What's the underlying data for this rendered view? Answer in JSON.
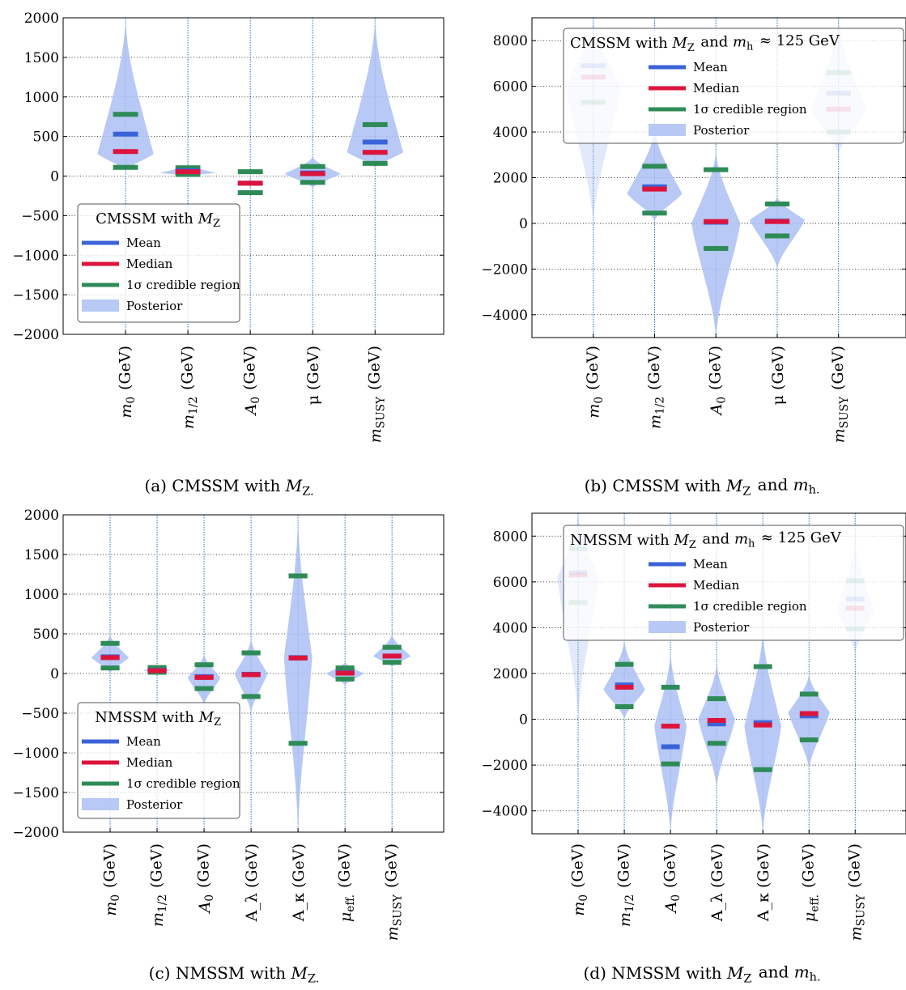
{
  "colors": {
    "mean": "#3b63d8",
    "median": "#dc143c",
    "ci": "#2e8b57",
    "posterior": "#aabff2",
    "guide": "#1f6fd1"
  },
  "chart_data": [
    {
      "type": "violin",
      "panel": "a",
      "caption": "(a) CMSSM with M_Z.",
      "legend_title": "CMSSM with M_Z",
      "legend_position": "lower-left",
      "legend_entries": [
        "Mean",
        "Median",
        "1σ credible region",
        "Posterior"
      ],
      "grid": true,
      "ylim": [
        -2000,
        2000
      ],
      "yticks": [
        -2000,
        -1500,
        -1000,
        -500,
        0,
        500,
        1000,
        1500,
        2000
      ],
      "categories": [
        "m_0 (GeV)",
        "m_1/2 (GeV)",
        "A_0 (GeV)",
        "μ (GeV)",
        "m_SUSY (GeV)"
      ],
      "series": [
        {
          "name": "Mean",
          "values": [
            530,
            70,
            -90,
            40,
            430
          ]
        },
        {
          "name": "Median",
          "values": [
            310,
            55,
            -90,
            30,
            300
          ]
        },
        {
          "name": "1σ credible region",
          "low": [
            110,
            20,
            -210,
            -80,
            160
          ],
          "high": [
            780,
            105,
            55,
            120,
            650
          ]
        }
      ],
      "violins": [
        {
          "min": 60,
          "max": 2000,
          "peak": 280,
          "halfwidth": 0.45
        },
        {
          "min": 0,
          "max": 150,
          "peak": 40,
          "halfwidth": 0.45
        },
        {
          "min": -200,
          "max": 60,
          "peak": -90,
          "halfwidth": 0.02
        },
        {
          "min": -150,
          "max": 250,
          "peak": 30,
          "halfwidth": 0.45
        },
        {
          "min": 100,
          "max": 2000,
          "peak": 300,
          "halfwidth": 0.45
        }
      ],
      "faded": false
    },
    {
      "type": "violin",
      "panel": "b",
      "caption": "(b) CMSSM with M_Z and m_h.",
      "legend_title": "CMSSM with M_Z and m_h ≈ 125 GeV",
      "legend_position": "top",
      "legend_entries": [
        "Mean",
        "Median",
        "1σ credible region",
        "Posterior"
      ],
      "grid": true,
      "ylim": [
        -5000,
        9000
      ],
      "yticks": [
        -4000,
        -2000,
        0,
        2000,
        4000,
        6000,
        8000
      ],
      "categories": [
        "m_0 (GeV)",
        "m_1/2 (GeV)",
        "A_0 (GeV)",
        "μ (GeV)",
        "m_SUSY (GeV)"
      ],
      "series": [
        {
          "name": "Mean",
          "values": [
            6900,
            1600,
            50,
            100,
            5700
          ]
        },
        {
          "name": "Median",
          "values": [
            6400,
            1500,
            80,
            80,
            5000
          ]
        },
        {
          "name": "1σ credible region",
          "low": [
            5300,
            450,
            -1100,
            -550,
            4000
          ],
          "high": [
            9500,
            2500,
            2350,
            850,
            6600
          ]
        }
      ],
      "violins": [
        {
          "min": 0,
          "max": 9000,
          "peak": 6000,
          "halfwidth": 0.45
        },
        {
          "min": 100,
          "max": 4200,
          "peak": 1300,
          "halfwidth": 0.45
        },
        {
          "min": -5000,
          "max": 3200,
          "peak": 0,
          "halfwidth": 0.4
        },
        {
          "min": -2000,
          "max": 1200,
          "peak": 150,
          "halfwidth": 0.45
        },
        {
          "min": 3000,
          "max": 9000,
          "peak": 5000,
          "halfwidth": 0.45
        }
      ],
      "faded": [
        true,
        false,
        false,
        false,
        true
      ]
    },
    {
      "type": "violin",
      "panel": "c",
      "caption": "(c) NMSSM with M_Z.",
      "legend_title": "NMSSM with M_Z",
      "legend_position": "lower-left",
      "legend_entries": [
        "Mean",
        "Median",
        "1σ credible region",
        "Posterior"
      ],
      "grid": true,
      "ylim": [
        -2000,
        2000
      ],
      "yticks": [
        -2000,
        -1500,
        -1000,
        -500,
        0,
        500,
        1000,
        1500,
        2000
      ],
      "categories": [
        "m_0 (GeV)",
        "m_1/2 (GeV)",
        "A_0 (GeV)",
        "A_λ (GeV)",
        "A_κ (GeV)",
        "μ_eff. (GeV)",
        "m_SUSY (GeV)"
      ],
      "series": [
        {
          "name": "Mean",
          "values": [
            210,
            40,
            -40,
            -10,
            200,
            10,
            220
          ]
        },
        {
          "name": "Median",
          "values": [
            200,
            35,
            -50,
            -15,
            195,
            5,
            220
          ]
        },
        {
          "name": "1σ credible region",
          "low": [
            70,
            15,
            -190,
            -290,
            -880,
            -70,
            140
          ],
          "high": [
            380,
            75,
            110,
            260,
            1230,
            70,
            330
          ]
        }
      ],
      "violins": [
        {
          "min": 0,
          "max": 500,
          "peak": 200,
          "halfwidth": 0.4
        },
        {
          "min": 0,
          "max": 100,
          "peak": 40,
          "halfwidth": 0.3
        },
        {
          "min": -400,
          "max": 250,
          "peak": -50,
          "halfwidth": 0.35
        },
        {
          "min": -500,
          "max": 450,
          "peak": 0,
          "halfwidth": 0.35
        },
        {
          "min": -2000,
          "max": 2000,
          "peak": 200,
          "halfwidth": 0.3
        },
        {
          "min": -150,
          "max": 150,
          "peak": 0,
          "halfwidth": 0.4
        },
        {
          "min": 80,
          "max": 500,
          "peak": 220,
          "halfwidth": 0.4
        }
      ],
      "faded": false
    },
    {
      "type": "violin",
      "panel": "d",
      "caption": "(d) NMSSM with M_Z and m_h.",
      "legend_title": "NMSSM with M_Z and m_h ≈ 125 GeV",
      "legend_position": "top",
      "legend_entries": [
        "Mean",
        "Median",
        "1σ credible region",
        "Posterior"
      ],
      "grid": true,
      "ylim": [
        -5000,
        9000
      ],
      "yticks": [
        -4000,
        -2000,
        0,
        2000,
        4000,
        6000,
        8000
      ],
      "categories": [
        "m_0 (GeV)",
        "m_1/2 (GeV)",
        "A_0 (GeV)",
        "A_λ (GeV)",
        "A_κ (GeV)",
        "μ_eff. (GeV)",
        "m_SUSY (GeV)"
      ],
      "series": [
        {
          "name": "Mean",
          "values": [
            6400,
            1500,
            -1200,
            -200,
            -150,
            150,
            5250
          ]
        },
        {
          "name": "Median",
          "values": [
            6300,
            1400,
            -300,
            -50,
            -250,
            250,
            4850
          ]
        },
        {
          "name": "1σ credible region",
          "low": [
            5100,
            550,
            -1950,
            -1050,
            -2200,
            -900,
            3950
          ],
          "high": [
            7450,
            2400,
            1400,
            900,
            2300,
            1100,
            6050
          ]
        }
      ],
      "violins": [
        {
          "min": 0,
          "max": 9000,
          "peak": 6200,
          "halfwidth": 0.45
        },
        {
          "min": 0,
          "max": 3500,
          "peak": 1300,
          "halfwidth": 0.45
        },
        {
          "min": -5000,
          "max": 3000,
          "peak": -300,
          "halfwidth": 0.35
        },
        {
          "min": -3000,
          "max": 2500,
          "peak": 0,
          "halfwidth": 0.4
        },
        {
          "min": -5000,
          "max": 4000,
          "peak": -300,
          "halfwidth": 0.4
        },
        {
          "min": -2200,
          "max": 2000,
          "peak": 300,
          "halfwidth": 0.45
        },
        {
          "min": 2800,
          "max": 8000,
          "peak": 4800,
          "halfwidth": 0.4
        }
      ],
      "faded": [
        true,
        false,
        false,
        false,
        false,
        false,
        true
      ]
    }
  ]
}
